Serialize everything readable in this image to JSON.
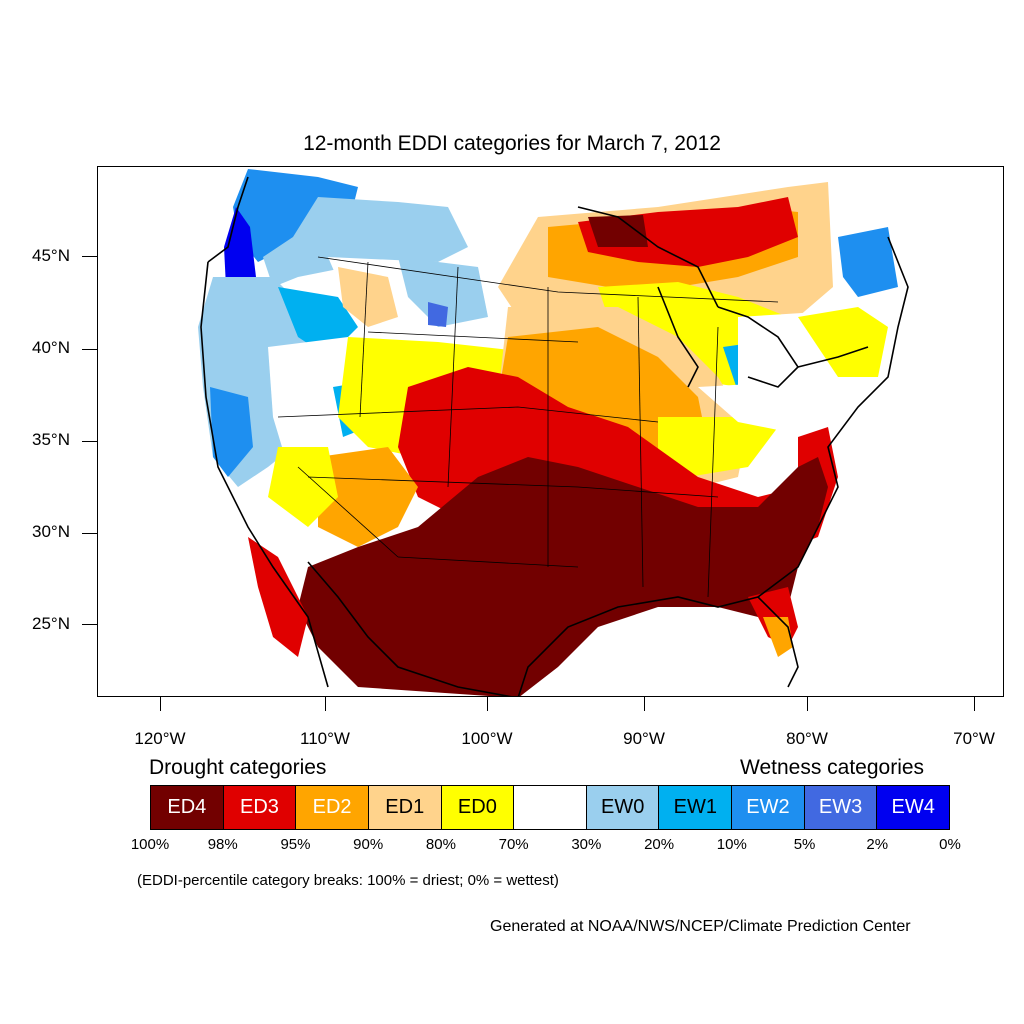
{
  "title": "12-month EDDI categories for March 7, 2012",
  "lat_labels": [
    "45°N",
    "40°N",
    "35°N",
    "30°N",
    "25°N"
  ],
  "lon_labels": [
    "120°W",
    "110°W",
    "100°W",
    "90°W",
    "80°W",
    "70°W"
  ],
  "legend": {
    "drought_heading": "Drought categories",
    "wetness_heading": "Wetness categories",
    "categories": [
      {
        "label": "ED4",
        "color": "#720000",
        "text_color": "#ffffff"
      },
      {
        "label": "ED3",
        "color": "#e00000",
        "text_color": "#ffffff"
      },
      {
        "label": "ED2",
        "color": "#ffa500",
        "text_color": "#ffffff"
      },
      {
        "label": "ED1",
        "color": "#ffd38c",
        "text_color": "#000000"
      },
      {
        "label": "ED0",
        "color": "#ffff00",
        "text_color": "#000000"
      },
      {
        "label": "",
        "color": "#ffffff",
        "text_color": "#000000"
      },
      {
        "label": "EW0",
        "color": "#9acfee",
        "text_color": "#000000"
      },
      {
        "label": "EW1",
        "color": "#00b0f0",
        "text_color": "#000000"
      },
      {
        "label": "EW2",
        "color": "#1e8ff0",
        "text_color": "#ffffff"
      },
      {
        "label": "EW3",
        "color": "#4169e1",
        "text_color": "#ffffff"
      },
      {
        "label": "EW4",
        "color": "#0000f0",
        "text_color": "#ffffff"
      }
    ],
    "percent_breaks": [
      "100%",
      "98%",
      "95%",
      "90%",
      "80%",
      "70%",
      "30%",
      "20%",
      "10%",
      "5%",
      "2%",
      "0%"
    ]
  },
  "breaks_note": "(EDDI-percentile category breaks: 100% = driest; 0% = wettest)",
  "credit": "Generated at NOAA/NWS/NCEP/Climate Prediction Center"
}
